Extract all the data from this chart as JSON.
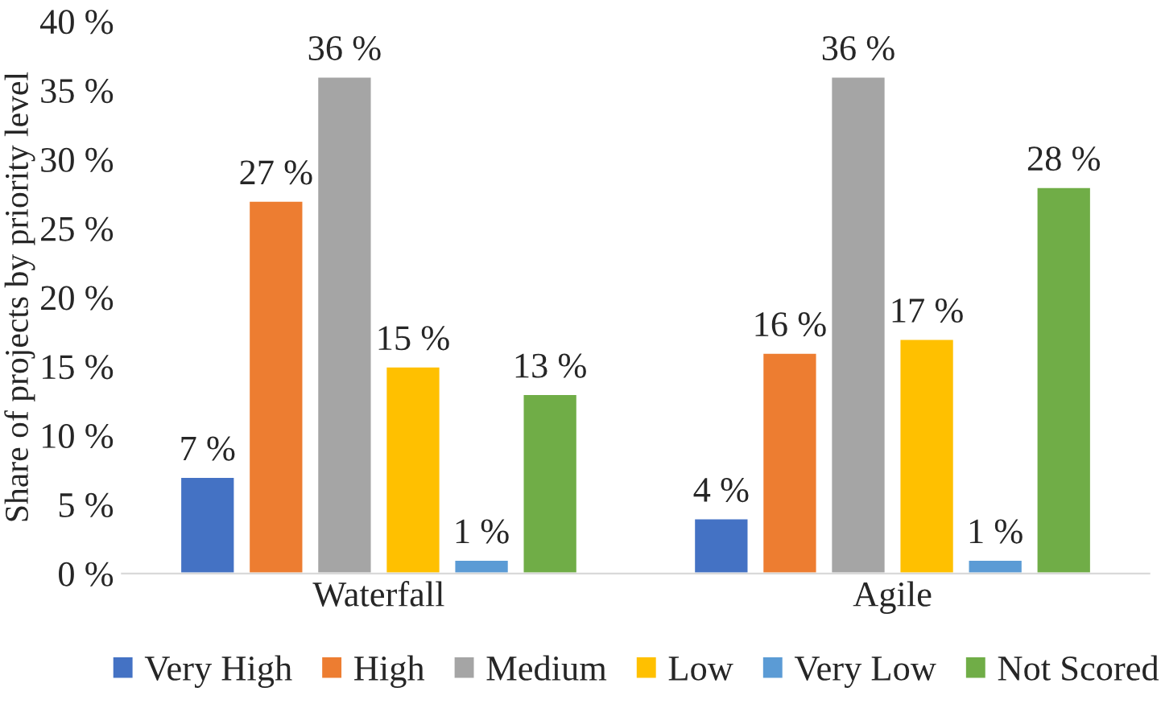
{
  "chart_data": {
    "type": "bar",
    "ylabel": "Share of projects by priority level",
    "categories": [
      "Waterfall",
      "Agile"
    ],
    "series": [
      {
        "name": "Very High",
        "color": "#4472c4",
        "values": [
          7,
          4
        ],
        "value_labels": [
          "7 %",
          "4 %"
        ]
      },
      {
        "name": "High",
        "color": "#ed7d31",
        "values": [
          27,
          16
        ],
        "value_labels": [
          "27 %",
          "16 %"
        ]
      },
      {
        "name": "Medium",
        "color": "#a5a5a5",
        "values": [
          36,
          36
        ],
        "value_labels": [
          "36 %",
          "36 %"
        ]
      },
      {
        "name": "Low",
        "color": "#ffc000",
        "values": [
          15,
          17
        ],
        "value_labels": [
          "15 %",
          "17 %"
        ]
      },
      {
        "name": "Very Low",
        "color": "#5b9bd5",
        "values": [
          1,
          1
        ],
        "value_labels": [
          "1 %",
          "1 %"
        ]
      },
      {
        "name": "Not Scored",
        "color": "#70ad47",
        "values": [
          13,
          28
        ],
        "value_labels": [
          "13 %",
          "28 %"
        ]
      }
    ],
    "ylim": [
      0,
      40
    ],
    "yticks": [
      {
        "value": 0,
        "label": "0 %"
      },
      {
        "value": 5,
        "label": "5 %"
      },
      {
        "value": 10,
        "label": "10 %"
      },
      {
        "value": 15,
        "label": "15 %"
      },
      {
        "value": 20,
        "label": "20 %"
      },
      {
        "value": 25,
        "label": "25 %"
      },
      {
        "value": 30,
        "label": "30 %"
      },
      {
        "value": 35,
        "label": "35 %"
      },
      {
        "value": 40,
        "label": "40 %"
      }
    ],
    "grid": false,
    "legend": "bottom"
  }
}
